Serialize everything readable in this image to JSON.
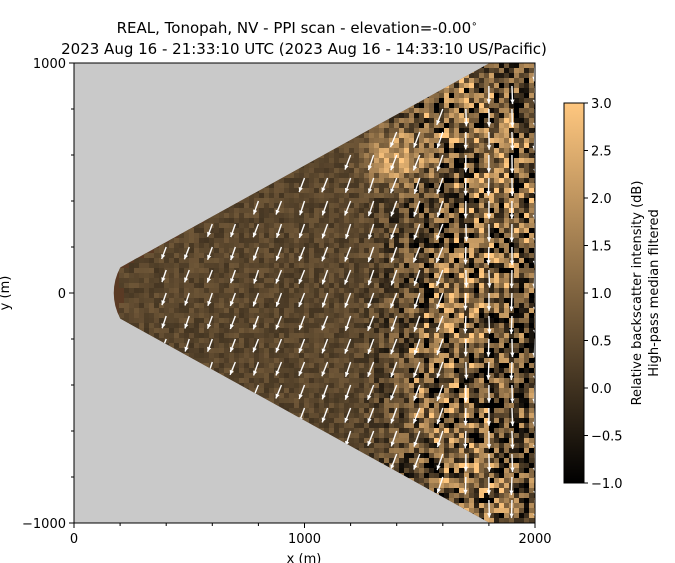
{
  "chart_data": {
    "type": "heatmap",
    "title": "REAL, Tonopah, NV - PPI scan - elevation=-0.00$^\\circ$",
    "title_line1": "REAL, Tonopah, NV - PPI scan - elevation=-0.00",
    "title_degree": "∘",
    "title_line2": "2023 Aug 16 - 21:33:10 UTC (2023 Aug 16 - 14:33:10 US/Pacific)",
    "xlabel": "x (m)",
    "ylabel": "y (m)",
    "xlim": [
      0,
      2000
    ],
    "ylim": [
      -1000,
      1000
    ],
    "x_ticks": [
      0,
      1000,
      2000
    ],
    "x_tick_labels": [
      "0",
      "1000",
      "2000"
    ],
    "y_ticks": [
      -1000,
      0,
      1000
    ],
    "y_tick_labels": [
      "−1000",
      "0",
      "1000"
    ],
    "grid": false,
    "no_data_color": "#c9c9c9",
    "scan_sector": {
      "min_range_m": 230,
      "half_angle_deg": 29,
      "max_range_m": 2300
    },
    "colorbar": {
      "label_line1": "Relative backscatter intensity (dB)",
      "label_line2": "High-pass median filtered",
      "range": [
        -1.0,
        3.0
      ],
      "ticks": [
        -1.0,
        -0.5,
        0.0,
        0.5,
        1.0,
        1.5,
        2.0,
        2.5,
        3.0
      ],
      "tick_labels": [
        "−1.0",
        "−0.5",
        "0.0",
        "0.5",
        "1.0",
        "1.5",
        "2.0",
        "2.5",
        "3.0"
      ],
      "colormap": "copper",
      "color_low": "#000000",
      "color_high": "#ffc77f"
    },
    "wind_vectors": {
      "color": "#ffffff",
      "grid_spacing_m": 100,
      "dominant_direction": "toward south-southwest",
      "note_speed_m": 80
    }
  }
}
